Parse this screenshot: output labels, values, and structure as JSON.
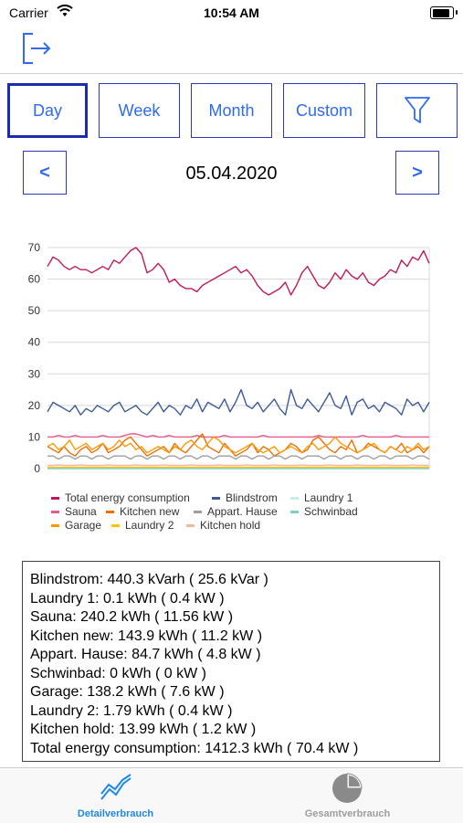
{
  "status": {
    "carrier": "Carrier",
    "time": "10:54 AM"
  },
  "toolbar": {
    "logout_icon": "logout-icon"
  },
  "segments": [
    {
      "label": "Day",
      "active": true
    },
    {
      "label": "Week",
      "active": false
    },
    {
      "label": "Month",
      "active": false
    },
    {
      "label": "Custom",
      "active": false
    }
  ],
  "filter_icon": "filter-icon",
  "date_nav": {
    "prev": "<",
    "next": ">",
    "date": "05.04.2020"
  },
  "chart_data": {
    "type": "line",
    "ylim": [
      0,
      70
    ],
    "yticks": [
      0,
      10,
      20,
      30,
      40,
      50,
      60,
      70
    ],
    "grid": "horizontal",
    "legend_position": "bottom",
    "series": [
      {
        "name": "Total energy consumption",
        "color": "#c2185b",
        "values": [
          64,
          67,
          66,
          64,
          63,
          64,
          63,
          63,
          62,
          63,
          64,
          63,
          66,
          65,
          67,
          69,
          70,
          68,
          62,
          63,
          65,
          63,
          59,
          60,
          58,
          57,
          57,
          56,
          58,
          59,
          60,
          61,
          62,
          63,
          64,
          62,
          63,
          61,
          58,
          56,
          55,
          56,
          57,
          59,
          55,
          58,
          62,
          64,
          61,
          58,
          57,
          59,
          62,
          60,
          63,
          61,
          60,
          62,
          59,
          58,
          60,
          61,
          63,
          62,
          66,
          64,
          67,
          66,
          69,
          65
        ]
      },
      {
        "name": "Blindstrom",
        "color": "#3d5a99",
        "values": [
          18,
          21,
          20,
          19,
          18,
          20,
          17,
          19,
          18,
          20,
          19,
          18,
          20,
          21,
          18,
          19,
          20,
          18,
          17,
          19,
          21,
          18,
          20,
          19,
          17,
          20,
          19,
          22,
          18,
          21,
          20,
          19,
          22,
          18,
          21,
          25,
          20,
          19,
          21,
          18,
          20,
          22,
          19,
          17,
          25,
          20,
          19,
          22,
          20,
          18,
          21,
          24,
          20,
          19,
          23,
          17,
          21,
          22,
          19,
          20,
          18,
          21,
          20,
          19,
          17,
          22,
          20,
          21,
          18,
          21
        ]
      },
      {
        "name": "Laundry 1",
        "color": "#c5ecec",
        "values": [
          0.1,
          0.1,
          0.1,
          0.1,
          0.1,
          0.1,
          0.1,
          0.1,
          0.1,
          0.1,
          0.1,
          0.1,
          0.1,
          0.1,
          0.1,
          0.1,
          0.1,
          0.1,
          0.1,
          0.1,
          0.1,
          0.1,
          0.1,
          0.1,
          0.1,
          0.1,
          0.1,
          0.1,
          0.1,
          0.1,
          0.1,
          0.1,
          0.1,
          0.1,
          0.1,
          0.1,
          0.1,
          0.1,
          0.1,
          0.1,
          0.1,
          0.1,
          0.1,
          0.1,
          0.1,
          0.1,
          0.1,
          0.1,
          0.1,
          0.1,
          0.1,
          0.1,
          0.1,
          0.1,
          0.1,
          0.1,
          0.1,
          0.1,
          0.1,
          0.1,
          0.1,
          0.1,
          0.1,
          0.1,
          0.1,
          0.1,
          0.1,
          0.1,
          0.1,
          0.1
        ]
      },
      {
        "name": "Sauna",
        "color": "#e85a8a",
        "values": [
          10,
          10,
          10.5,
          10,
          10,
          10.5,
          10,
          10,
          10,
          10,
          10.5,
          10,
          10,
          10,
          10.5,
          11,
          11,
          10.5,
          10,
          10.5,
          10,
          10,
          10.5,
          10,
          10,
          10,
          10,
          10.5,
          10,
          10,
          10,
          10,
          10.5,
          10,
          10,
          10,
          10,
          10,
          10,
          10.5,
          10,
          10,
          10,
          10,
          10,
          10,
          10,
          10,
          10,
          10.5,
          10,
          10,
          10,
          10,
          10,
          10,
          10,
          10.5,
          10,
          10,
          10,
          10,
          10,
          10.5,
          10,
          10,
          10,
          10,
          10,
          10
        ]
      },
      {
        "name": "Kitchen new",
        "color": "#ef6c00",
        "values": [
          7,
          6,
          5,
          7,
          5,
          4,
          6,
          7,
          5,
          6,
          8,
          5,
          6,
          7,
          9,
          10,
          8,
          6,
          4,
          5,
          6,
          7,
          5,
          8,
          6,
          5,
          7,
          9,
          11,
          7,
          6,
          5,
          8,
          6,
          4,
          5,
          6,
          8,
          5,
          7,
          6,
          4,
          5,
          6,
          8,
          7,
          5,
          6,
          9,
          10,
          8,
          6,
          5,
          7,
          6,
          9,
          5,
          6,
          8,
          7,
          6,
          5,
          7,
          6,
          8,
          5,
          6,
          7,
          5,
          7
        ]
      },
      {
        "name": "Appart. Hause",
        "color": "#9e9e9e",
        "values": [
          4,
          4,
          3,
          4,
          4,
          3,
          4,
          4,
          3,
          4,
          4,
          3,
          4,
          4,
          4,
          3,
          4,
          4,
          3,
          4,
          4,
          3,
          4,
          4,
          3,
          4,
          4,
          3,
          4,
          4,
          3,
          4,
          4,
          4,
          3,
          4,
          4,
          3,
          4,
          4,
          3,
          4,
          4,
          3,
          4,
          4,
          3,
          4,
          4,
          4,
          3,
          4,
          4,
          3,
          4,
          4,
          3,
          4,
          4,
          3,
          4,
          4,
          3,
          4,
          4,
          4,
          3,
          4,
          4,
          3
        ]
      },
      {
        "name": "Schwinbad",
        "color": "#80cbc4",
        "values": [
          0,
          0,
          0,
          0,
          0,
          0,
          0,
          0,
          0,
          0,
          0,
          0,
          0,
          0,
          0,
          0,
          0,
          0,
          0,
          0,
          0,
          0,
          0,
          0,
          0,
          0,
          0,
          0,
          0,
          0,
          0,
          0,
          0,
          0,
          0,
          0,
          0,
          0,
          0,
          0,
          0,
          0,
          0,
          0,
          0,
          0,
          0,
          0,
          0,
          0,
          0,
          0,
          0,
          0,
          0,
          0,
          0,
          0,
          0,
          0,
          0,
          0,
          0,
          0,
          0,
          0,
          0,
          0,
          0,
          0
        ]
      },
      {
        "name": "Garage",
        "color": "#ff9800",
        "values": [
          7,
          8,
          6,
          7,
          9,
          6,
          7,
          8,
          6,
          7,
          8,
          6,
          7,
          9,
          7,
          8,
          6,
          7,
          5,
          6,
          7,
          6,
          5,
          7,
          6,
          8,
          9,
          7,
          6,
          8,
          10,
          9,
          7,
          6,
          5,
          6,
          7,
          8,
          6,
          5,
          6,
          7,
          5,
          6,
          7,
          6,
          5,
          7,
          8,
          6,
          7,
          8,
          10,
          8,
          7,
          6,
          5,
          6,
          7,
          8,
          6,
          5,
          7,
          6,
          5,
          7,
          6,
          8,
          6,
          7
        ]
      },
      {
        "name": "Laundry 2",
        "color": "#ffc107",
        "values": [
          0.4,
          0.4,
          0.4,
          0.4,
          0.4,
          0.4,
          0.4,
          0.4,
          0.4,
          0.4,
          0.4,
          0.4,
          0.4,
          0.4,
          0.4,
          0.4,
          0.4,
          0.4,
          0.4,
          0.4,
          0.4,
          0.4,
          0.4,
          0.4,
          0.4,
          0.4,
          0.4,
          0.4,
          0.4,
          0.4,
          0.4,
          0.4,
          0.4,
          0.4,
          0.4,
          0.4,
          0.4,
          0.4,
          0.4,
          0.4,
          0.4,
          0.4,
          0.4,
          0.4,
          0.4,
          0.4,
          0.4,
          0.4,
          0.4,
          0.4,
          0.4,
          0.4,
          0.4,
          0.4,
          0.4,
          0.4,
          0.4,
          0.4,
          0.4,
          0.4,
          0.4,
          0.4,
          0.4,
          0.4,
          0.4,
          0.4,
          0.4,
          0.4,
          0.4,
          0.4
        ]
      },
      {
        "name": "Kitchen hold",
        "color": "#f3b6a0",
        "values": [
          1,
          1,
          1.2,
          1,
          1,
          1,
          1.2,
          1,
          1,
          1,
          1,
          1.2,
          1,
          1,
          1,
          1,
          1.2,
          1,
          1,
          1,
          1,
          1.2,
          1,
          1,
          1,
          1,
          1.2,
          1,
          1,
          1,
          1,
          1.2,
          1,
          1,
          1,
          1,
          1.2,
          1,
          1,
          1,
          1,
          1.2,
          1,
          1,
          1,
          1,
          1.2,
          1,
          1,
          1,
          1,
          1.2,
          1,
          1,
          1,
          1,
          1.2,
          1,
          1,
          1,
          1,
          1.2,
          1,
          1,
          1,
          1,
          1.2,
          1,
          1,
          1
        ]
      }
    ]
  },
  "summary": [
    "Blindstrom: 440.3 kVarh ( 25.6 kVar )",
    "Laundry 1: 0.1 kWh ( 0.4 kW )",
    "Sauna: 240.2 kWh ( 11.56 kW )",
    "Kitchen new: 143.9 kWh ( 11.2 kW )",
    "Appart. Hause: 84.7 kWh ( 4.8 kW )",
    "Schwinbad: 0 kWh ( 0 kW )",
    "Garage: 138.2 kWh ( 7.6 kW )",
    "Laundry 2: 1.79 kWh ( 0.4 kW )",
    "Kitchen hold: 13.99 kWh ( 1.2 kW )",
    "Total energy consumption: 1412.3 kWh ( 70.4 kW )"
  ],
  "tabs": [
    {
      "label": "Detailverbrauch",
      "icon": "line-chart-icon",
      "active": true,
      "color": "#1e88e5"
    },
    {
      "label": "Gesamtverbrauch",
      "icon": "pie-chart-icon",
      "active": false,
      "color": "#9e9e9e"
    }
  ]
}
